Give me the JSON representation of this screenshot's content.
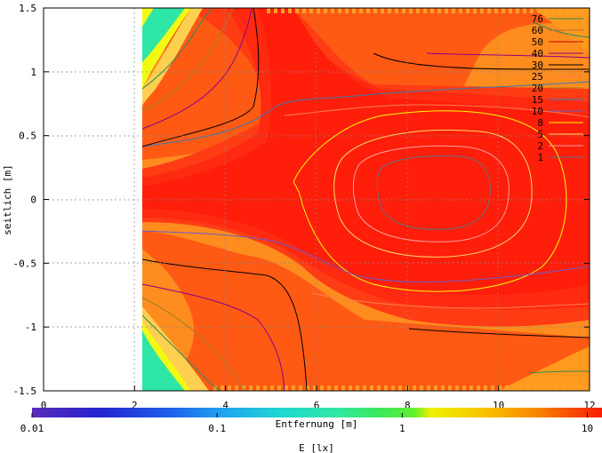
{
  "chart_data": {
    "type": "heatmap",
    "xlabel": "Entfernung [m]",
    "ylabel": "seitlich [m]",
    "colorbar_label": "E [lx]",
    "xlim": [
      0,
      12
    ],
    "ylim": [
      -1.5,
      1.5
    ],
    "x_ticks": [
      0,
      2,
      4,
      6,
      8,
      10,
      12
    ],
    "y_ticks": [
      1.5,
      1,
      0.5,
      0,
      -0.5,
      -1,
      -1.5
    ],
    "colorbar_scale": "log",
    "colorbar_range": [
      0.01,
      12
    ],
    "colorbar_ticks": [
      0.01,
      0.1,
      1,
      10
    ],
    "grid": true,
    "legend_position": "top-right",
    "contour_levels": [
      {
        "label": "76",
        "color": "#2e8b57"
      },
      {
        "label": "60",
        "color": "#b06f2c"
      },
      {
        "label": "50",
        "color": "#c80000"
      },
      {
        "label": "40",
        "color": "#8b0087"
      },
      {
        "label": "30",
        "color": "#000000"
      },
      {
        "label": "25",
        "color": "#ff7f50"
      },
      {
        "label": "20",
        "color": "#a08020"
      },
      {
        "label": "15",
        "color": "#3a78b0"
      },
      {
        "label": "10",
        "color": "#6a5acd"
      },
      {
        "label": "8",
        "color": "#ffff00"
      },
      {
        "label": "5",
        "color": "#ffdd66"
      },
      {
        "label": "2",
        "color": "#ffa0a0"
      },
      {
        "label": "1",
        "color": "#607080"
      }
    ]
  }
}
